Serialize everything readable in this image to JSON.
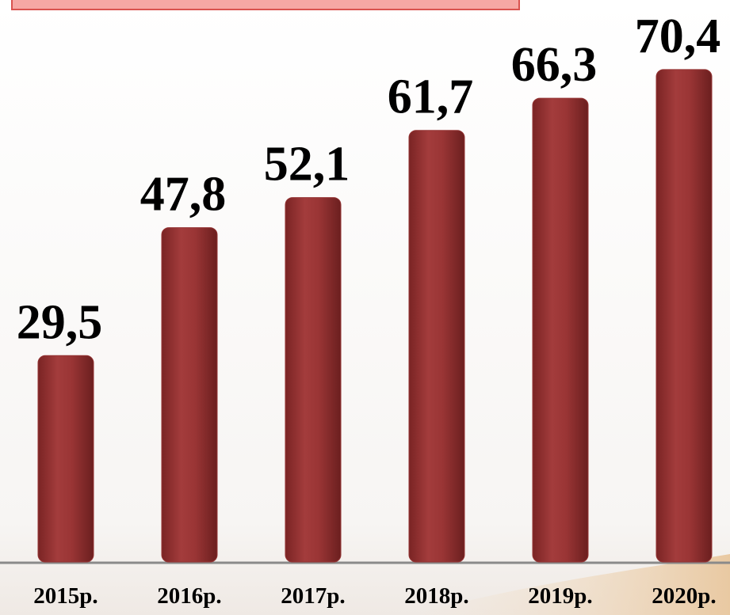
{
  "chart_data": {
    "type": "bar",
    "categories": [
      "2015р.",
      "2016р.",
      "2017р.",
      "2018р.",
      "2019р.",
      "2020р."
    ],
    "values": [
      29.5,
      47.8,
      52.1,
      61.7,
      66.3,
      70.4
    ],
    "value_labels": [
      "29,5",
      "47,8",
      "52,1",
      "61,7",
      "66,3",
      "70,4"
    ],
    "color": "#943333",
    "ylim": [
      0,
      80
    ]
  }
}
